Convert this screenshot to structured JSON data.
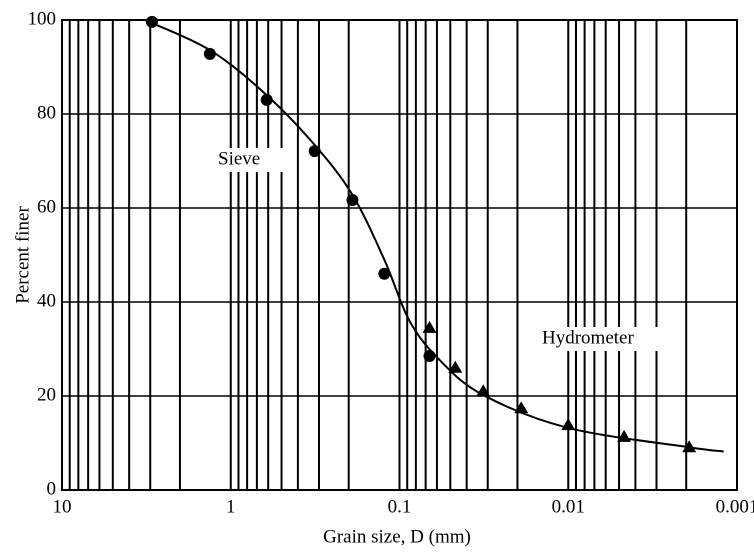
{
  "chart_data": {
    "type": "scatter",
    "xlabel": "Grain size, D (mm)",
    "ylabel": "Percent finer",
    "xlim": [
      10,
      0.001
    ],
    "ylim": [
      0,
      100
    ],
    "xticks": [
      10,
      1,
      0.1,
      0.01,
      0.001
    ],
    "yticks": [
      0,
      20,
      40,
      60,
      80,
      100
    ],
    "log_x": true,
    "grid": true,
    "series": [
      {
        "marker": "none",
        "line": true,
        "color": "#000000",
        "x": [
          3.23,
          1.33,
          0.612,
          0.318,
          0.19,
          0.123,
          0.0873,
          0.058,
          0.0319,
          0.01,
          0.00192,
          0.0012
        ],
        "values": [
          100,
          93.6,
          84,
          73.4,
          62.8,
          49,
          36,
          27.7,
          20.2,
          13.2,
          9.1,
          8.2
        ]
      },
      {
        "name": "Sieve",
        "marker": "circle",
        "line": false,
        "color": "#000000",
        "x": [
          2.93,
          1.33,
          0.612,
          0.318,
          0.19,
          0.123,
          0.0664
        ],
        "values": [
          99.6,
          92.8,
          83,
          72.1,
          61.7,
          46,
          28.5
        ]
      },
      {
        "name": "Hydrometer",
        "marker": "triangle",
        "line": false,
        "color": "#000000",
        "x": [
          0.0664,
          0.0467,
          0.0319,
          0.019,
          0.01,
          0.00467,
          0.00192
        ],
        "values": [
          34.5,
          26,
          21,
          17.4,
          13.8,
          11.3,
          9.1
        ]
      }
    ]
  }
}
